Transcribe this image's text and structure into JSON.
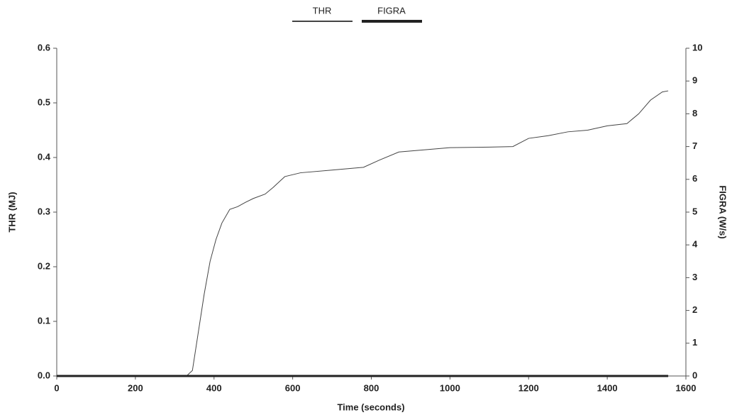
{
  "chart_data": {
    "type": "line",
    "xlabel": "Time (seconds)",
    "ylabel": "THR (MJ)",
    "y2label": "FIGRA (W/s)",
    "xlim": [
      0,
      1600
    ],
    "xticks": [
      0,
      200,
      400,
      600,
      800,
      1000,
      1200,
      1400,
      1600
    ],
    "ylim": [
      0,
      0.6
    ],
    "yticks": [
      {
        "value": 0,
        "label": "0.0"
      },
      0.1,
      0.2,
      0.3,
      0.4,
      0.5,
      0.6
    ],
    "y2lim": [
      0,
      10
    ],
    "y2ticks": [
      0,
      1,
      2,
      3,
      4,
      5,
      6,
      7,
      8,
      9,
      10
    ],
    "series": [
      {
        "name": "THR",
        "color": "#444444",
        "width": 1,
        "x": [
          0,
          330,
          345,
          360,
          375,
          390,
          405,
          420,
          440,
          460,
          480,
          500,
          530,
          550,
          580,
          620,
          700,
          780,
          820,
          870,
          950,
          1000,
          1100,
          1160,
          1200,
          1250,
          1300,
          1350,
          1400,
          1450,
          1480,
          1510,
          1540,
          1555
        ],
        "values": [
          0,
          0,
          0.01,
          0.08,
          0.15,
          0.21,
          0.25,
          0.28,
          0.305,
          0.31,
          0.318,
          0.325,
          0.333,
          0.345,
          0.365,
          0.372,
          0.377,
          0.382,
          0.395,
          0.41,
          0.415,
          0.418,
          0.419,
          0.42,
          0.435,
          0.44,
          0.447,
          0.45,
          0.458,
          0.462,
          0.48,
          0.505,
          0.52,
          0.522
        ]
      },
      {
        "name": "FIGRA",
        "color": "#222222",
        "width": 3,
        "axis": "y2",
        "x": [
          0,
          1555
        ],
        "values": [
          0,
          0
        ]
      }
    ]
  }
}
